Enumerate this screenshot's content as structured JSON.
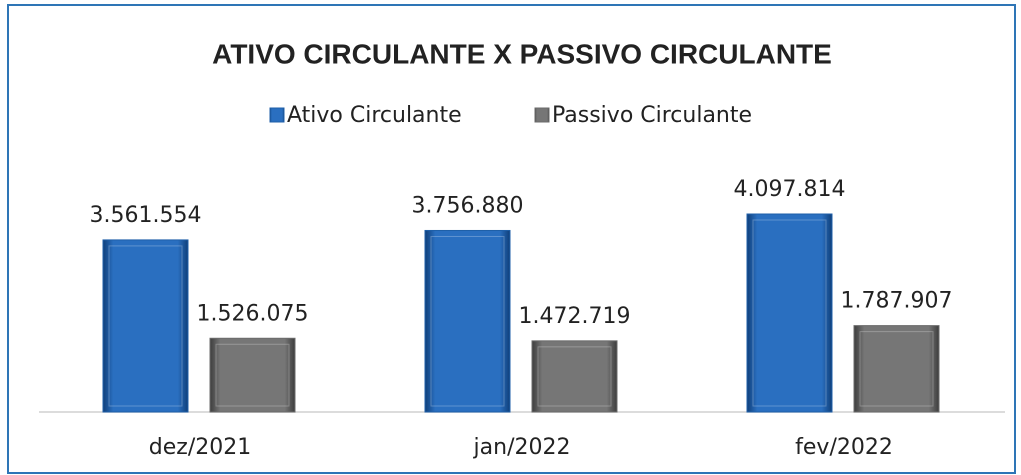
{
  "chart_data": {
    "type": "bar",
    "title": "ATIVO CIRCULANTE X PASSIVO CIRCULANTE",
    "categories": [
      "dez/2021",
      "jan/2022",
      "fev/2022"
    ],
    "series": [
      {
        "name": "Ativo Circulante",
        "color": "#1f5fa8",
        "values": [
          3561554,
          3756880,
          4097814
        ],
        "value_labels": [
          "3.561.554",
          "3.756.880",
          "4.097.814"
        ]
      },
      {
        "name": "Passivo Circulante",
        "color": "#6b6b6b",
        "values": [
          1526075,
          1472719,
          1787907
        ],
        "value_labels": [
          "1.526.075",
          "1.472.719",
          "1.787.907"
        ]
      }
    ],
    "legend": "top"
  }
}
